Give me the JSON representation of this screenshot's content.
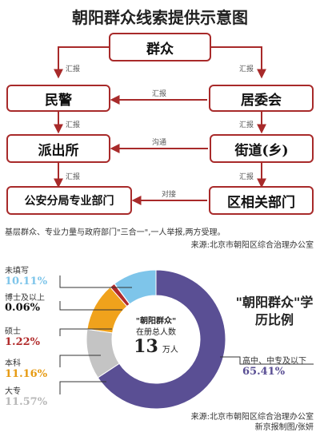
{
  "title": "朝阳群众线索提供示意图",
  "flow": {
    "nodes": {
      "qunzhong": "群众",
      "minjing": "民警",
      "juweihui": "居委会",
      "paichusuo": "派出所",
      "jiedao": "街道(乡)",
      "gongan": "公安分局专业部门",
      "qu": "区相关部门"
    },
    "edges": {
      "report": "汇报",
      "goutong": "沟通",
      "duijie": "对接"
    },
    "note": "基层群众、专业力量与政府部门\"三合一\",一人举报,两方受理。",
    "source": "来源:北京市朝阳区综合治理办公室"
  },
  "chart_data": {
    "type": "pie",
    "categories": [
      "高中、中专及以下",
      "大专",
      "本科",
      "硕士",
      "博士及以上",
      "未填写"
    ],
    "values": [
      65.41,
      11.57,
      11.16,
      1.22,
      0.06,
      10.11
    ],
    "value_labels": [
      "65.41%",
      "11.57%",
      "11.16%",
      "1.22%",
      "0.06%",
      "10.11%"
    ],
    "colors": [
      "#5a4f94",
      "#c4c4c4",
      "#f0a21c",
      "#b12a2a",
      "#8a7fb4",
      "#7ec5ea"
    ],
    "title": "\"朝阳群众\"学历比例",
    "center": {
      "line1": "\"朝阳群众\"",
      "line2": "在册总人数",
      "number": "13",
      "unit": "万人"
    }
  },
  "footer": {
    "source": "来源:北京市朝阳区综合治理办公室",
    "credit": "新京报制图/张妍"
  }
}
